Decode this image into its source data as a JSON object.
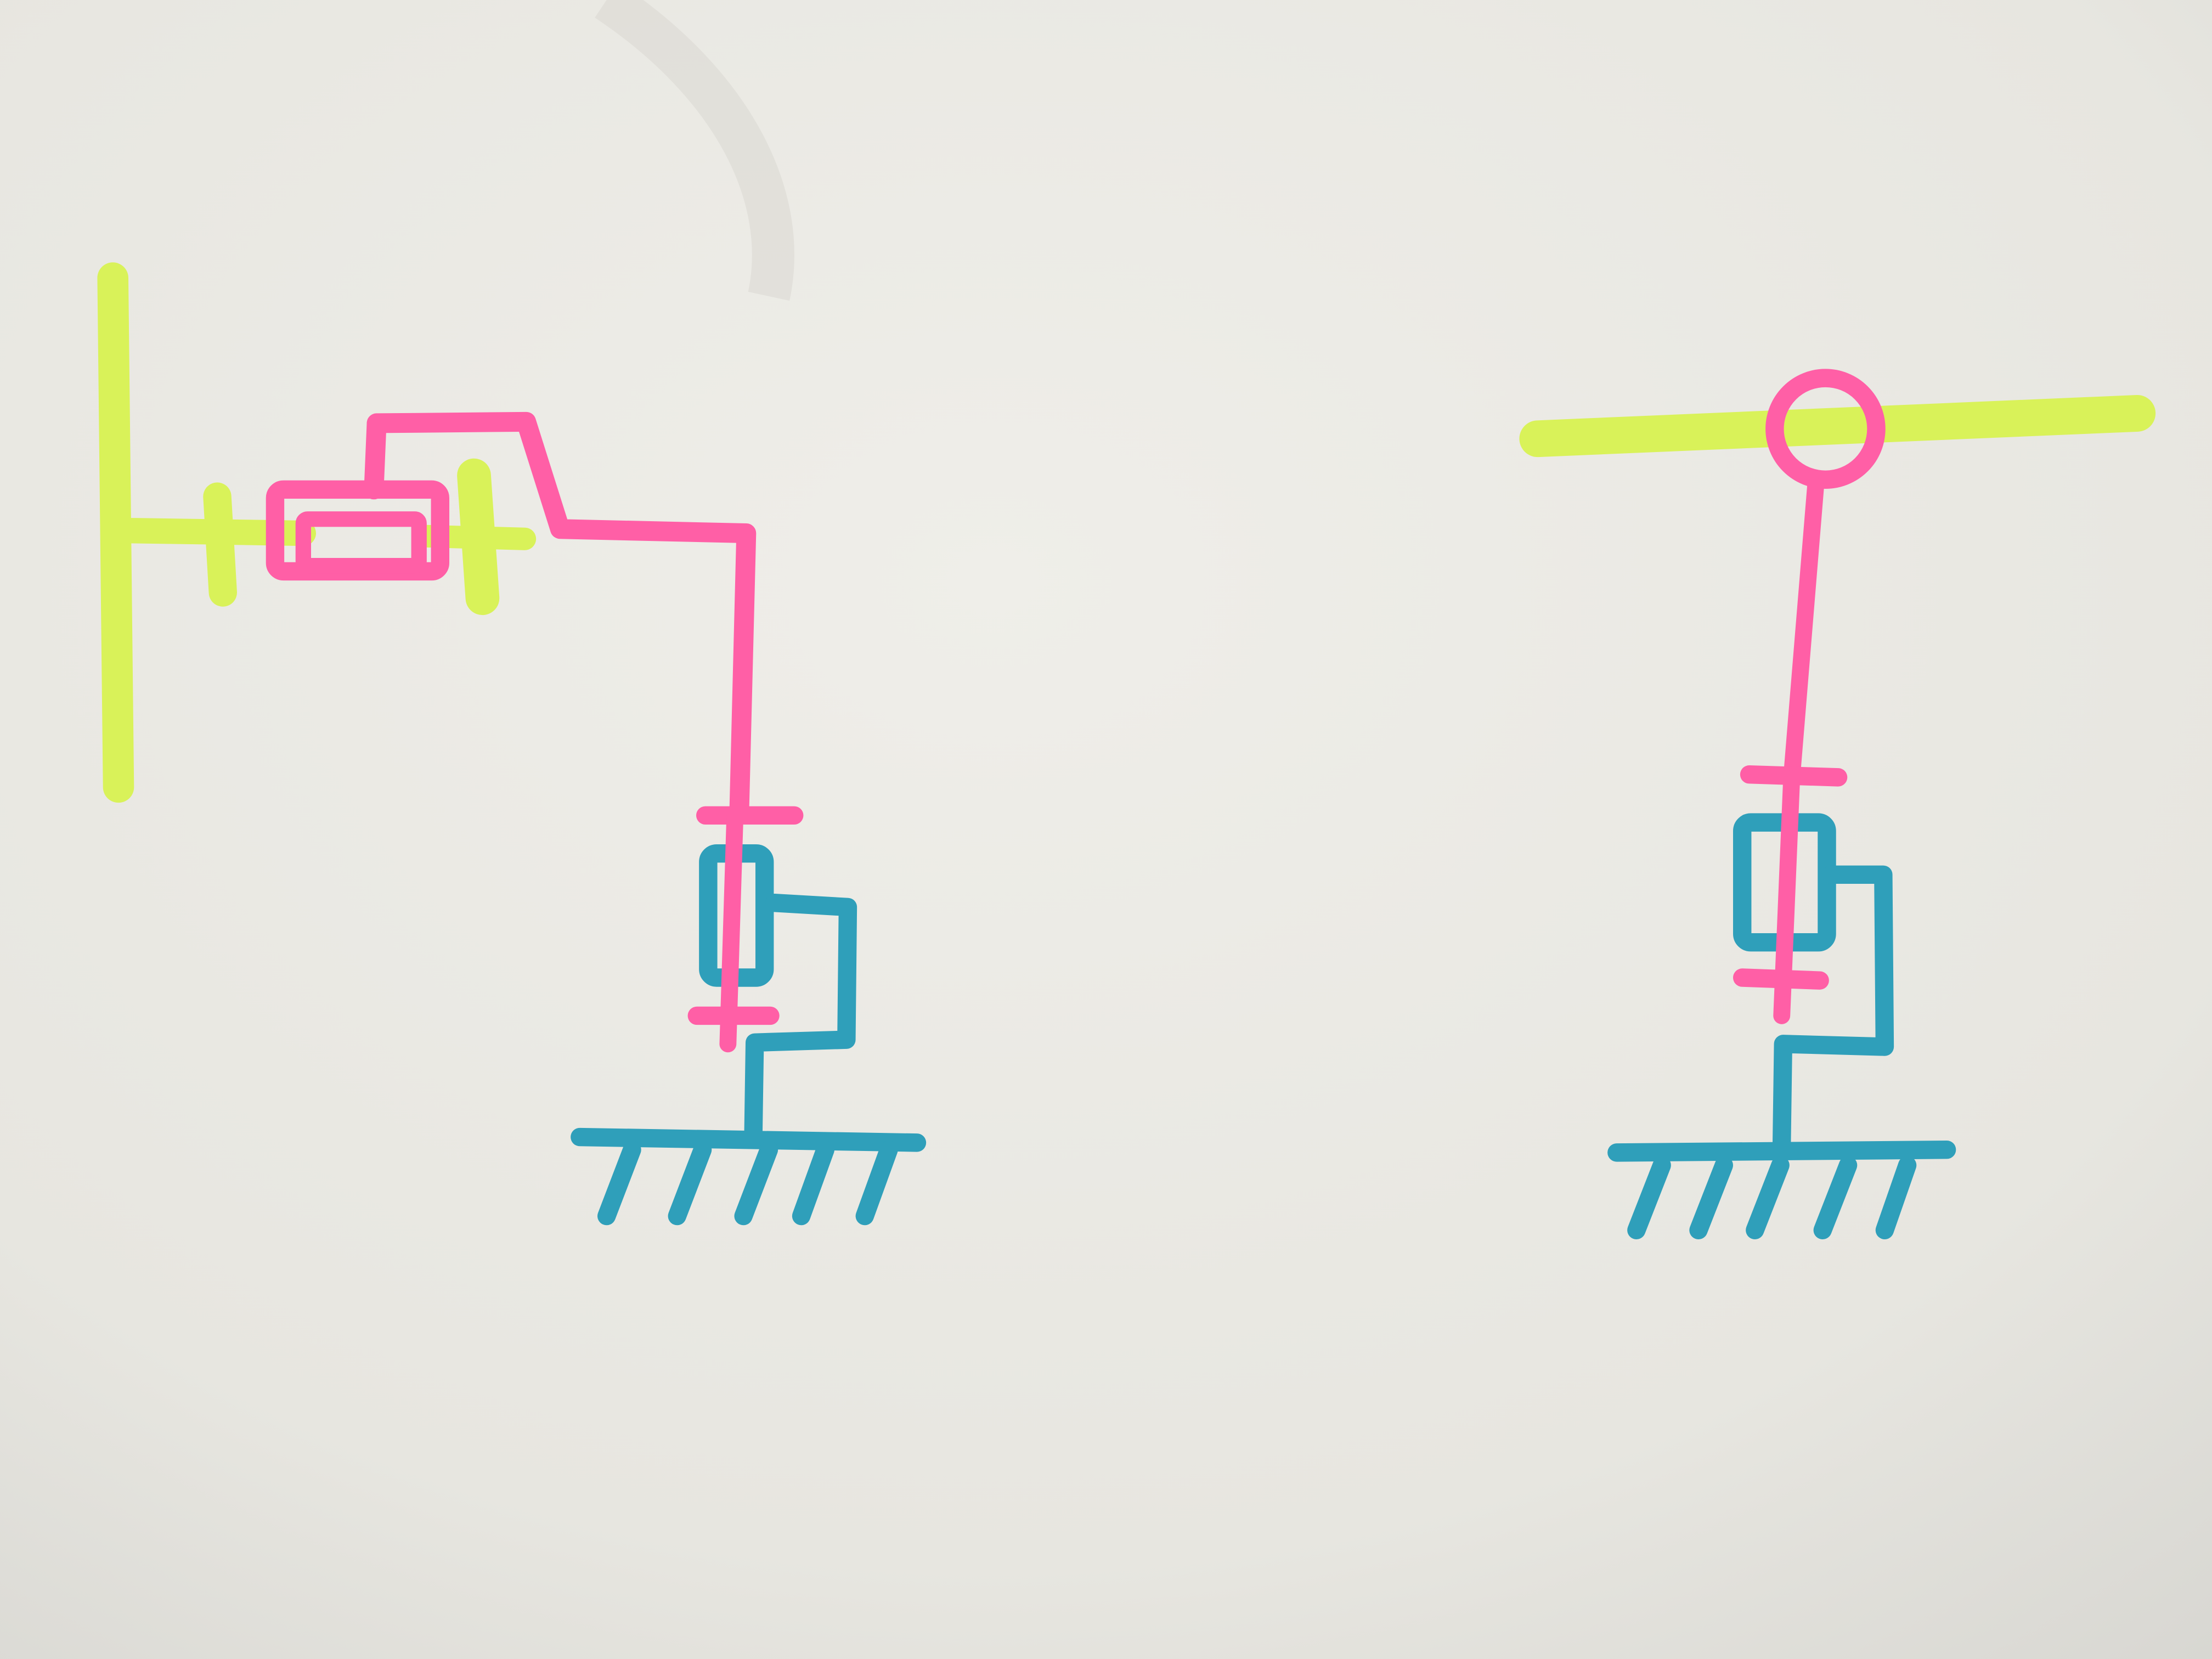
{
  "palette": {
    "paper_light": "#eeede8",
    "paper_mid": "#e6e5df",
    "paper_dark": "#d6d5d0",
    "yellow_marker": "#d9f259",
    "pink_marker": "#ff5fa6",
    "blue_marker": "#2f9fba",
    "pink_fill": "#ffb0cf"
  },
  "diagrams": [
    {
      "id": "left",
      "icons": [
        "yellow-frame-icon",
        "prismatic-joint-icon",
        "arm-link-icon",
        "revolute-joint-icon",
        "ground-icon"
      ]
    },
    {
      "id": "right",
      "icons": [
        "yellow-bar-icon",
        "pin-joint-icon",
        "vertical-link-icon",
        "revolute-joint-icon",
        "ground-icon"
      ]
    }
  ]
}
